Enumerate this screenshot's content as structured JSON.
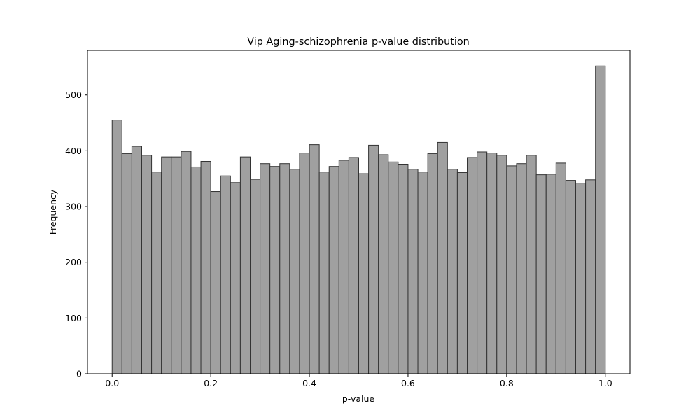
{
  "chart_data": {
    "type": "bar",
    "title": "Vip Aging-schizophrenia p-value distribution",
    "xlabel": "p-value",
    "ylabel": "Frequency",
    "xlim": [
      -0.05,
      1.05
    ],
    "ylim": [
      0,
      580
    ],
    "bin_width": 0.02,
    "bin_edges_start": 0.0,
    "values": [
      455,
      395,
      408,
      392,
      362,
      389,
      389,
      399,
      371,
      381,
      327,
      355,
      343,
      389,
      349,
      377,
      372,
      377,
      367,
      396,
      411,
      362,
      372,
      383,
      388,
      359,
      410,
      393,
      380,
      376,
      367,
      362,
      395,
      415,
      367,
      361,
      388,
      398,
      396,
      392,
      373,
      377,
      392,
      357,
      358,
      378,
      347,
      342,
      348,
      552
    ],
    "xticks": [
      0.0,
      0.2,
      0.4,
      0.6,
      0.8,
      1.0
    ],
    "xtick_labels": [
      "0.0",
      "0.2",
      "0.4",
      "0.6",
      "0.8",
      "1.0"
    ],
    "yticks": [
      0,
      100,
      200,
      300,
      400,
      500
    ],
    "ytick_labels": [
      "0",
      "100",
      "200",
      "300",
      "400",
      "500"
    ],
    "grid": false,
    "colors": {
      "bar_fill": "#a0a0a0",
      "bar_edge": "#333333"
    }
  }
}
